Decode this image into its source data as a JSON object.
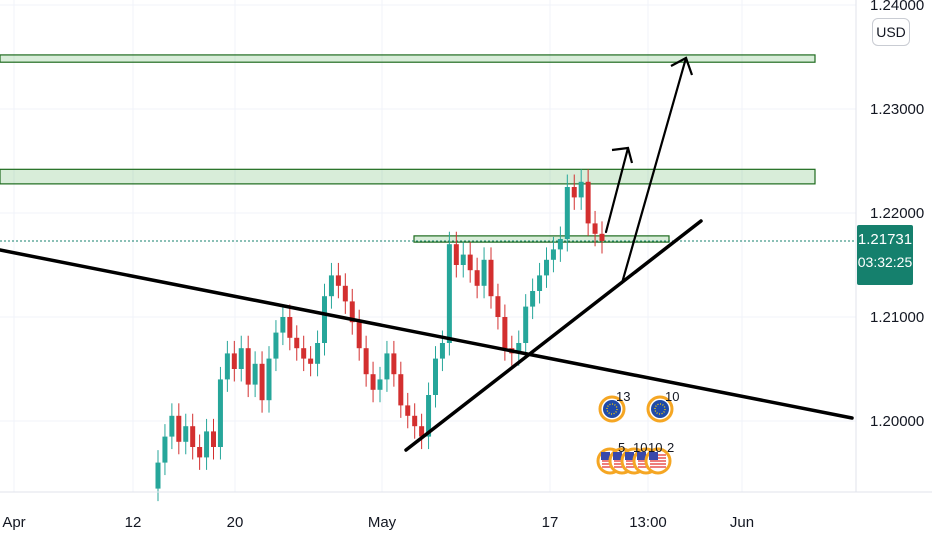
{
  "chart_data": {
    "type": "candlestick",
    "currency": "USD",
    "y_ticks": [
      "1.24000",
      "1.23000",
      "1.22000",
      "1.21000",
      "1.20000"
    ],
    "x_ticks": [
      "Apr",
      "12",
      "20",
      "May",
      "17",
      "13:00",
      "Jun"
    ],
    "last_price": "1.21731",
    "countdown": "03:32:25",
    "ylim": [
      1.192,
      1.242
    ],
    "grid": true,
    "series": [
      {
        "name": "candles_start",
        "values": [
          1.1935,
          1.196,
          1.1985,
          1.2005,
          1.198,
          1.1995,
          1.1975,
          1.1965,
          1.199,
          1.1975,
          1.204,
          1.2065,
          1.205,
          1.207,
          1.2035,
          1.2055,
          1.202,
          1.206,
          1.2085,
          1.21,
          1.208,
          1.207,
          1.206,
          1.2055,
          1.2075,
          1.212,
          1.214,
          1.213,
          1.2115,
          1.2095,
          1.207,
          1.2045,
          1.203,
          1.204,
          1.2065,
          1.2045,
          1.2015,
          1.2005,
          1.1995,
          1.1985,
          1.2025,
          1.206,
          1.2075,
          1.217,
          1.215,
          1.216,
          1.2145,
          1.213,
          1.2155,
          1.212,
          1.21,
          1.207,
          1.2065,
          1.2075,
          1.211,
          1.2125,
          1.214,
          1.2155,
          1.2165,
          1.2175,
          1.2225,
          1.2215,
          1.223,
          1.219,
          1.218
        ]
      }
    ],
    "annotations": {
      "resistance_zones": [
        {
          "y1": 1.2345,
          "y2": 1.2352
        },
        {
          "y1": 1.2228,
          "y2": 1.2242
        },
        {
          "y1": 1.2172,
          "y2": 1.2178
        }
      ],
      "last_price_line": 1.21731
    },
    "event_markers": {
      "eu_count_a": "13",
      "eu_count_b": "10",
      "us_count_a": "5",
      "us_count_b": "10",
      "us_count_c": "10",
      "us_count_d": "2"
    }
  }
}
